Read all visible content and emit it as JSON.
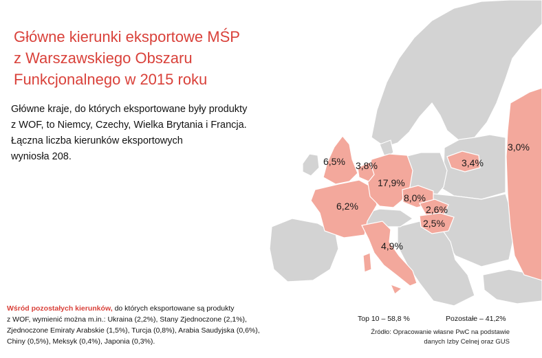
{
  "title": [
    "Główne kierunki eksportowe MŚP",
    "z Warszawskiego Obszaru",
    "Funkcjonalnego w 2015 roku"
  ],
  "intro": [
    "Główne kraje, do których eksportowane były produkty",
    "z WOF, to Niemcy, Czechy, Wielka Brytania i Francja.",
    "Łączna liczba kierunków eksportowych",
    "wyniosła 208."
  ],
  "colors": {
    "accent": "#d9413a",
    "highlight": "#f3a89c",
    "land": "#d3d3d3",
    "background": "#ffffff"
  },
  "map_labels": {
    "germany": "17,9%",
    "czechia": "8,0%",
    "uk": "6,5%",
    "france": "6,2%",
    "italy": "4,9%",
    "netherlands": "3,8%",
    "lithuania": "3,4%",
    "russia": "3,0%",
    "slovakia": "2,6%",
    "hungary": "2,5%"
  },
  "others": {
    "lead": "Wśród pozostałych kierunków,",
    "lines": [
      "do których eksportowane są produkty",
      "z WOF, wymienić można m.in.: Ukraina (2,2%), Stany Zjednoczone (2,1%),",
      "Zjednoczone Emiraty Arabskie (1,5%), Turcja (0,8%), Arabia Saudyjska (0,6%),",
      "Chiny (0,5%), Meksyk (0,4%), Japonia (0,3%)."
    ]
  },
  "summary": {
    "top10": "Top 10 – 58,8 %",
    "rest": "Pozostałe – 41,2%"
  },
  "source": [
    "Źródło: Opracowanie własne PwC na podstawie",
    "danych Izby Celnej oraz GUS"
  ]
}
